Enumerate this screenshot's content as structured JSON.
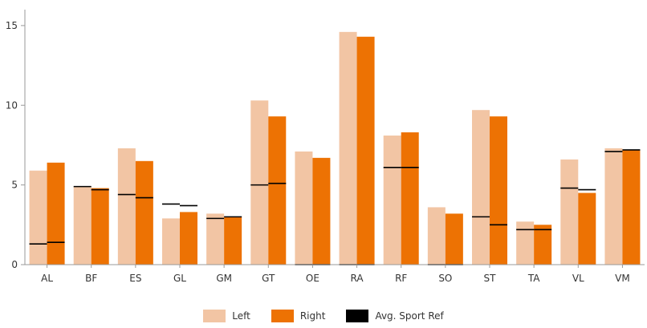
{
  "chart_data": {
    "type": "bar",
    "title": "",
    "xlabel": "",
    "ylabel": "",
    "ylim": [
      0,
      16
    ],
    "yticks": [
      0,
      5,
      10,
      15
    ],
    "categories": [
      "AL",
      "BF",
      "ES",
      "GL",
      "GM",
      "GT",
      "OE",
      "RA",
      "RF",
      "SO",
      "ST",
      "TA",
      "VL",
      "VM"
    ],
    "series": [
      {
        "name": "Left",
        "color": "#f2c5a4",
        "values": [
          5.9,
          4.9,
          7.3,
          2.9,
          3.2,
          10.3,
          7.1,
          14.6,
          8.1,
          3.6,
          9.7,
          2.7,
          6.6,
          7.3
        ]
      },
      {
        "name": "Right",
        "color": "#ed7203",
        "values": [
          6.4,
          4.8,
          6.5,
          3.3,
          3.0,
          9.3,
          6.7,
          14.3,
          8.3,
          3.2,
          9.3,
          2.5,
          4.5,
          7.2
        ]
      }
    ],
    "reference": {
      "name": "Avg. Sport Ref",
      "color": "#000000",
      "left": [
        1.3,
        4.9,
        4.4,
        3.8,
        2.9,
        5.0,
        0.0,
        0.0,
        6.1,
        0.0,
        3.0,
        2.2,
        4.8,
        7.1
      ],
      "right": [
        1.4,
        4.7,
        4.2,
        3.7,
        3.0,
        5.1,
        0.0,
        0.0,
        6.1,
        0.0,
        2.5,
        2.2,
        4.7,
        7.2
      ]
    },
    "legend_position": "bottom",
    "grid": false
  },
  "legend": {
    "items": [
      {
        "label": "Left",
        "color": "#f2c5a4"
      },
      {
        "label": "Right",
        "color": "#ed7203"
      },
      {
        "label": "Avg. Sport Ref",
        "color": "#000000"
      }
    ]
  }
}
